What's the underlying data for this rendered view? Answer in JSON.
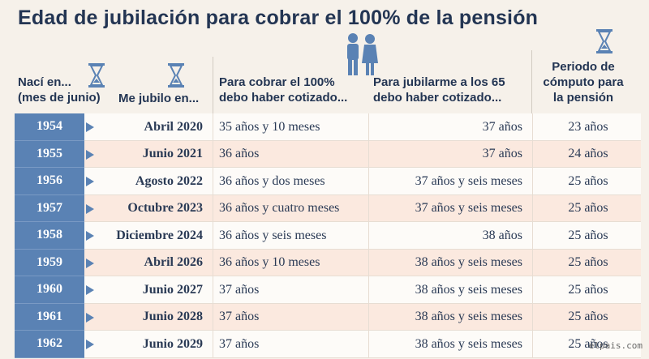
{
  "title": "Edad de jubilación para cobrar el 100% de la pensión",
  "headers": {
    "born_line1": "Nací en...",
    "born_line2": "(mes de junio)",
    "retire": "Me jubilo en...",
    "cot100_line1": "Para cobrar el 100%",
    "cot100_line2": "debo haber cotizado...",
    "cot65_line1": "Para jubilarme a los 65",
    "cot65_line2": "debo haber cotizado...",
    "period_line1": "Periodo de",
    "period_line2": "cómputo para",
    "period_line3": "la pensión"
  },
  "icons": [
    "hourglass-icon",
    "hourglass-icon",
    "elderly-couple-icon",
    "hourglass-icon"
  ],
  "colors": {
    "accent": "#5a82b4",
    "title": "#233553",
    "alt_row": "#fbe9df"
  },
  "rows": [
    {
      "year": "1954",
      "retire": "Abril 2020",
      "cot100": "35 años y 10 meses",
      "cot65": "37 años",
      "period": "23 años"
    },
    {
      "year": "1955",
      "retire": "Junio 2021",
      "cot100": "36 años",
      "cot65": "37 años",
      "period": "24 años"
    },
    {
      "year": "1956",
      "retire": "Agosto 2022",
      "cot100": "36 años y dos meses",
      "cot65": "37 años y seis meses",
      "period": "25 años"
    },
    {
      "year": "1957",
      "retire": "Octubre 2023",
      "cot100": "36 años y cuatro meses",
      "cot65": "37 años y seis meses",
      "period": "25 años"
    },
    {
      "year": "1958",
      "retire": "Diciembre 2024",
      "cot100": "36 años y seis meses",
      "cot65": "38 años",
      "period": "25 años"
    },
    {
      "year": "1959",
      "retire": "Abril 2026",
      "cot100": "36 años y 10 meses",
      "cot65": "38 años y seis meses",
      "period": "25 años"
    },
    {
      "year": "1960",
      "retire": "Junio 2027",
      "cot100": "37 años",
      "cot65": "38 años y seis meses",
      "period": "25 años"
    },
    {
      "year": "1961",
      "retire": "Junio 2028",
      "cot100": "37 años",
      "cot65": "38 años y seis meses",
      "period": "25 años"
    },
    {
      "year": "1962",
      "retire": "Junio 2029",
      "cot100": "37 años",
      "cot65": "38 años y seis meses",
      "period": "25 años"
    }
  ],
  "watermark": "elpais.com"
}
